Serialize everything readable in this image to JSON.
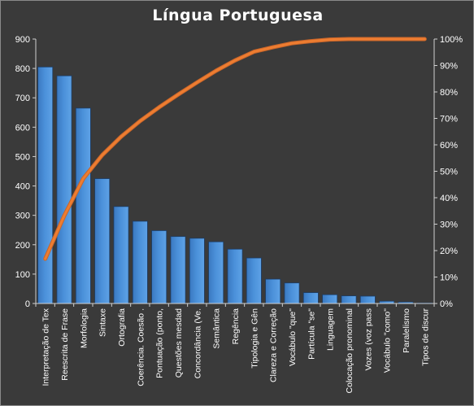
{
  "chart_data": {
    "type": "bar",
    "title": "Língua  Portuguesa",
    "categories": [
      "Interpretação de Tex",
      "Reescrita de Frase",
      "Morfologia",
      "Sintaxe",
      "Ortografia",
      "Coerência. Coesão .",
      "Pontuação (ponto,",
      "Questões mesdad",
      "Concordância (Ve.",
      "Semântica",
      "Regência",
      "Tipologia e Gên",
      "Clareza e Correção",
      "Vocábulo \"que\"",
      "Partícula \"se\"",
      "Linguagem",
      "Colocação pronominal",
      "Vozes (voz pass",
      "Vocábulo \"como\"",
      "Paralelismo",
      "Tipos de discur"
    ],
    "series": [
      {
        "type": "bar",
        "axis": "left",
        "color": "#4a90d9",
        "values": [
          805,
          775,
          665,
          425,
          330,
          280,
          248,
          228,
          222,
          210,
          185,
          155,
          83,
          70,
          37,
          30,
          26,
          25,
          8,
          5,
          2
        ]
      },
      {
        "type": "line",
        "axis": "right",
        "color": "#ed7d31",
        "values": [
          16.9,
          33.2,
          47.2,
          56.1,
          63.1,
          69.0,
          74.2,
          79.0,
          83.6,
          88.0,
          91.9,
          95.2,
          96.9,
          98.4,
          99.2,
          99.8,
          100,
          100,
          100,
          100,
          100
        ]
      }
    ],
    "y_left": {
      "min": 0,
      "max": 900,
      "step": 100,
      "ticks": [
        "0",
        "100",
        "200",
        "300",
        "400",
        "500",
        "600",
        "700",
        "800",
        "900"
      ]
    },
    "y_right": {
      "min": 0,
      "max": 100,
      "step": 10,
      "ticks": [
        "0%",
        "10%",
        "20%",
        "30%",
        "40%",
        "50%",
        "60%",
        "70%",
        "80%",
        "90%",
        "100%"
      ]
    },
    "grid": false,
    "legend": "none"
  }
}
